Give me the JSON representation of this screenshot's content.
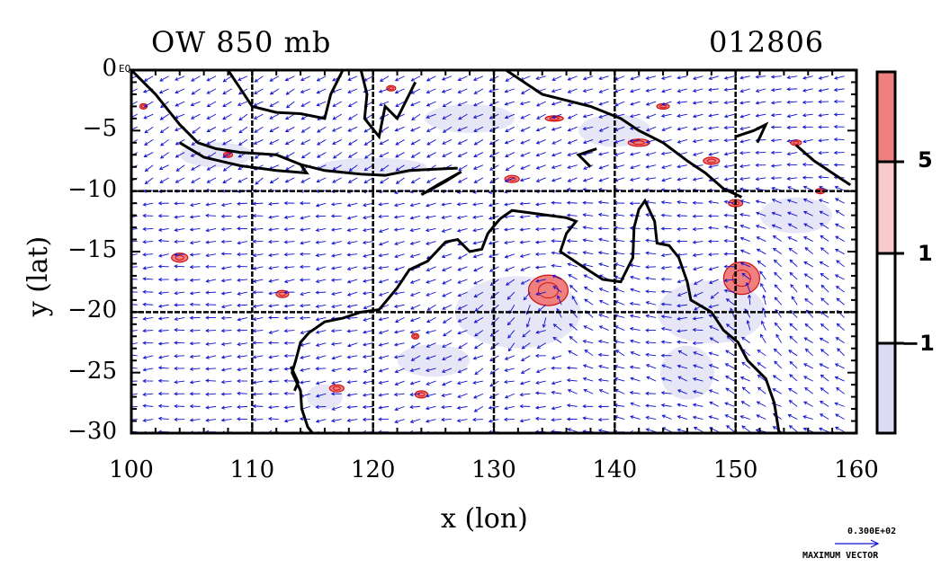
{
  "title": {
    "left": "OW 850 mb",
    "right": "012806"
  },
  "axes": {
    "xlabel": "x (lon)",
    "ylabel": "y (lat)",
    "x_ticks": [
      "100",
      "110",
      "120",
      "130",
      "140",
      "150",
      "160"
    ],
    "y_ticks": [
      "0",
      "−5",
      "−10",
      "−15",
      "−20",
      "−25",
      "−30"
    ],
    "eq_label": "EQ"
  },
  "legend": {
    "labels": [
      "5",
      "1",
      "−1"
    ],
    "colors": {
      "strong_pos": "#f08080",
      "pos": "#f8caca",
      "zero": "#ffffff",
      "neg": "#dcdcf4"
    }
  },
  "vector_key": {
    "value": "0.300E+02",
    "caption": "MAXIMUM VECTOR"
  },
  "colors": {
    "vector": "#1010d0",
    "contour_pos": "#d01010",
    "coast": "#000000"
  }
}
